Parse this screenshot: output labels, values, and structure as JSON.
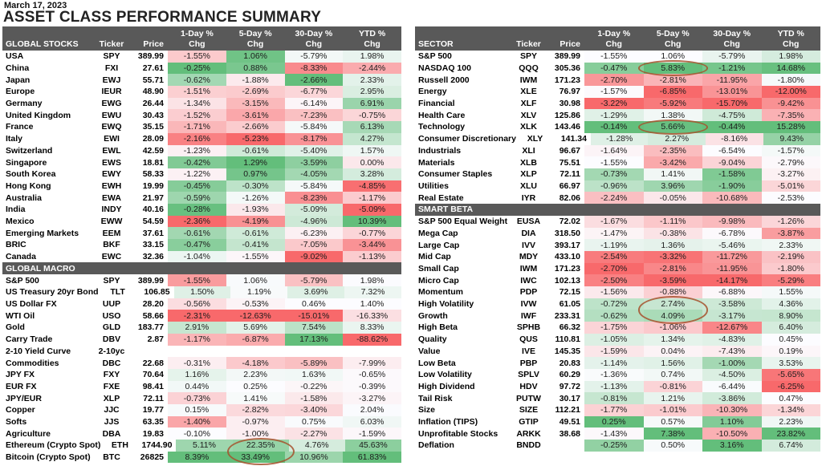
{
  "colors": {
    "header_bg": "#595959",
    "header_text": "#FFFFFF",
    "scale_min": "#F8696B",
    "scale_mid": "#FCFCFF",
    "scale_max": "#63BE7B",
    "annotation": "#A6512D",
    "title_text": "#222222"
  },
  "chart_data": {
    "type": "table",
    "date": "March 17, 2023",
    "title": "ASSET CLASS PERFORMANCE SUMMARY",
    "column_headers": {
      "ticker": "Ticker",
      "price": "Price",
      "chg": "Chg",
      "periods": [
        "1-Day %",
        "5-Day %",
        "30-Day %",
        "YTD %"
      ]
    },
    "heatmap": {
      "style": "3-color scale per section per column, midpoint = column median",
      "min_color": "#F8696B",
      "mid_color": "#FCFCFF",
      "max_color": "#63BE7B"
    },
    "row_fields": [
      "label",
      "ticker",
      "price",
      "chg_1d",
      "chg_5d",
      "chg_30d",
      "chg_ytd"
    ],
    "tables": [
      {
        "id": "left",
        "sections": [
          {
            "name": "GLOBAL STOCKS",
            "rows": [
              [
                "USA",
                "SPY",
                "389.99",
                -1.55,
                1.06,
                -5.79,
                1.98
              ],
              [
                "China",
                "FXI",
                "27.61",
                -0.25,
                0.88,
                -8.33,
                -2.44
              ],
              [
                "Japan",
                "EWJ",
                "55.71",
                -0.62,
                -1.88,
                -2.66,
                2.33
              ],
              [
                "Europe",
                "IEUR",
                "48.90",
                -1.51,
                -2.69,
                -6.77,
                2.95
              ],
              [
                "Germany",
                "EWG",
                "26.44",
                -1.34,
                -3.15,
                -6.14,
                6.91
              ],
              [
                "United Kingdom",
                "EWU",
                "30.43",
                -1.52,
                -3.61,
                -7.23,
                -0.75
              ],
              [
                "France",
                "EWQ",
                "35.15",
                -1.71,
                -2.66,
                -5.84,
                6.13
              ],
              [
                "Italy",
                "EWI",
                "28.09",
                -2.16,
                -5.23,
                -8.17,
                4.27
              ],
              [
                "Switzerland",
                "EWL",
                "42.59",
                -1.23,
                -0.61,
                -5.4,
                1.57
              ],
              [
                "Singapore",
                "EWS",
                "18.81",
                -0.42,
                1.29,
                -3.59,
                0.0
              ],
              [
                "South Korea",
                "EWY",
                "58.33",
                -1.22,
                0.97,
                -4.05,
                3.28
              ],
              [
                "Hong Kong",
                "EWH",
                "19.99",
                -0.45,
                -0.3,
                -5.84,
                -4.85
              ],
              [
                "Australia",
                "EWA",
                "21.97",
                -0.59,
                -1.26,
                -8.23,
                -1.17
              ],
              [
                "India",
                "INDY",
                "40.16",
                -0.28,
                -1.93,
                -5.09,
                -5.09
              ],
              [
                "Mexico",
                "EWW",
                "54.59",
                -2.36,
                -4.19,
                -4.96,
                10.39
              ],
              [
                "Emerging Markets",
                "EEM",
                "37.61",
                -0.61,
                -0.61,
                -6.23,
                -0.77
              ],
              [
                "BRIC",
                "BKF",
                "33.15",
                -0.47,
                -0.41,
                -7.05,
                -3.44
              ],
              [
                "Canada",
                "EWC",
                "32.36",
                -1.04,
                -1.55,
                -9.02,
                -1.13
              ]
            ]
          },
          {
            "name": "GLOBAL MACRO",
            "rows": [
              [
                "S&P 500",
                "SPY",
                "389.99",
                -1.55,
                1.06,
                -5.79,
                1.98
              ],
              [
                "US Treasury 20yr Bond",
                "TLT",
                "106.85",
                1.5,
                1.19,
                3.69,
                7.32
              ],
              [
                "US Dollar FX",
                "UUP",
                "28.20",
                -0.56,
                -0.53,
                0.46,
                1.4
              ],
              [
                "WTI Oil",
                "USO",
                "58.66",
                -2.31,
                -12.63,
                -15.01,
                -16.33
              ],
              [
                "Gold",
                "GLD",
                "183.77",
                2.91,
                5.69,
                7.54,
                8.33
              ],
              [
                "Carry Trade",
                "DBV",
                "2.87",
                -1.17,
                -6.87,
                17.13,
                -88.62
              ],
              [
                "2-10 Yield Curve",
                "2-10yc",
                "",
                null,
                null,
                null,
                null
              ],
              [
                "Commodities",
                "DBC",
                "22.68",
                -0.31,
                -4.18,
                -5.89,
                -7.99
              ],
              [
                "JPY FX",
                "FXY",
                "70.64",
                1.16,
                2.23,
                1.63,
                -0.65
              ],
              [
                "EUR FX",
                "FXE",
                "98.41",
                0.44,
                0.25,
                -0.22,
                -0.39
              ],
              [
                "JPY/EUR",
                "XLP",
                "72.11",
                -0.73,
                1.41,
                -1.58,
                -3.27
              ],
              [
                "Copper",
                "JJC",
                "19.77",
                0.15,
                -2.82,
                -3.4,
                2.04
              ],
              [
                "Softs",
                "JJS",
                "63.35",
                -1.4,
                -0.97,
                0.75,
                6.03
              ],
              [
                "Agriculture",
                "DBA",
                "19.83",
                -0.1,
                -1.0,
                -2.27,
                -1.59
              ],
              [
                "Ethereum (Crypto Spot)",
                "ETH",
                "1744.90",
                5.11,
                22.35,
                4.76,
                45.63
              ],
              [
                "Bitcoin (Crypto Spot)",
                "BTC",
                "26825",
                8.39,
                33.49,
                10.96,
                61.83
              ]
            ]
          }
        ]
      },
      {
        "id": "right",
        "sections": [
          {
            "name": "SECTOR",
            "rows": [
              [
                "S&P 500",
                "SPY",
                "389.99",
                -1.55,
                1.06,
                -5.79,
                1.98
              ],
              [
                "NASDAQ 100",
                "QQQ",
                "305.36",
                -0.47,
                5.83,
                -1.21,
                14.68
              ],
              [
                "Russell 2000",
                "IWM",
                "171.23",
                -2.7,
                -2.81,
                -11.95,
                -1.8
              ],
              [
                "Energy",
                "XLE",
                "76.97",
                -1.57,
                -6.85,
                -13.01,
                -12.0
              ],
              [
                "Financial",
                "XLF",
                "30.98",
                -3.22,
                -5.92,
                -15.7,
                -9.42
              ],
              [
                "Health Care",
                "XLV",
                "125.86",
                -1.29,
                1.38,
                -4.75,
                -7.35
              ],
              [
                "Technology",
                "XLK",
                "143.46",
                -0.14,
                5.66,
                -0.44,
                15.28
              ],
              [
                "Consumer Discretionary",
                "XLY",
                "141.34",
                -1.28,
                2.27,
                -8.16,
                9.43
              ],
              [
                "Industrials",
                "XLI",
                "96.67",
                -1.64,
                -2.35,
                -6.54,
                -1.57
              ],
              [
                "Materials",
                "XLB",
                "75.51",
                -1.55,
                -3.42,
                -9.04,
                -2.79
              ],
              [
                "Consumer Staples",
                "XLP",
                "72.11",
                -0.73,
                1.41,
                -1.58,
                -3.27
              ],
              [
                "Utilities",
                "XLU",
                "66.97",
                -0.96,
                3.96,
                -1.9,
                -5.01
              ],
              [
                "Real Estate",
                "IYR",
                "82.06",
                -2.24,
                -0.05,
                -10.68,
                -2.53
              ]
            ]
          },
          {
            "name": "SMART BETA",
            "rows": [
              [
                "S&P 500 Equal Weight",
                "EUSA",
                "72.02",
                -1.67,
                -1.11,
                -9.98,
                -1.26
              ],
              [
                "Mega Cap",
                "DIA",
                "318.50",
                -1.47,
                -0.38,
                -6.78,
                -3.87
              ],
              [
                "Large Cap",
                "IVV",
                "393.17",
                -1.19,
                1.36,
                -5.46,
                2.33
              ],
              [
                "Mid Cap",
                "MDY",
                "433.10",
                -2.54,
                -3.32,
                -11.72,
                -2.19
              ],
              [
                "Small Cap",
                "IWM",
                "171.23",
                -2.7,
                -2.81,
                -11.95,
                -1.8
              ],
              [
                "Micro Cap",
                "IWC",
                "102.13",
                -2.5,
                -3.59,
                -14.17,
                -5.29
              ],
              [
                "Momentum",
                "PDP",
                "72.15",
                -1.56,
                -0.88,
                -6.88,
                1.55
              ],
              [
                "High Volatility",
                "IVW",
                "61.05",
                -0.72,
                2.74,
                -3.58,
                4.36
              ],
              [
                "Growth",
                "IWF",
                "233.31",
                -0.62,
                4.09,
                -3.17,
                8.9
              ],
              [
                "High Beta",
                "SPHB",
                "66.32",
                -1.75,
                -1.06,
                -12.67,
                6.4
              ],
              [
                "Quality",
                "QUS",
                "110.81",
                -1.05,
                1.34,
                -4.83,
                0.45
              ],
              [
                "Value",
                "IVE",
                "145.35",
                -1.59,
                0.04,
                -7.43,
                0.19
              ],
              [
                "Low Beta",
                "PBP",
                "20.83",
                -1.14,
                1.56,
                -1.0,
                3.53
              ],
              [
                "Low Volatility",
                "SPLV",
                "60.29",
                -1.36,
                0.74,
                -4.5,
                -5.65
              ],
              [
                "High Dividend",
                "HDV",
                "97.72",
                -1.13,
                -0.81,
                -6.44,
                -6.25
              ],
              [
                "Tail Risk",
                "PUTW",
                "30.17",
                -0.81,
                1.21,
                -3.86,
                0.47
              ],
              [
                "Size",
                "SIZE",
                "112.21",
                -1.77,
                -1.01,
                -10.3,
                -1.34
              ],
              [
                "Inflation (TIPS)",
                "GTIP",
                "49.51",
                0.25,
                0.57,
                1.1,
                2.23
              ],
              [
                "Unprofitable Stocks",
                "ARKK",
                "38.68",
                -1.43,
                7.38,
                -10.5,
                23.82
              ],
              [
                "Deflation",
                "BNDD",
                "",
                -0.25,
                0.5,
                3.16,
                6.74
              ]
            ]
          }
        ]
      }
    ]
  },
  "annotations": [
    {
      "label": "circle-eth-btc-5day",
      "table": 0,
      "section": 1,
      "row_start": 14,
      "row_end": 15,
      "col": 1
    },
    {
      "label": "circle-nasdaq100-5day",
      "table": 1,
      "section": 0,
      "row_start": 1,
      "row_end": 1,
      "col": 1
    },
    {
      "label": "circle-technology-5day",
      "table": 1,
      "section": 0,
      "row_start": 6,
      "row_end": 6,
      "col": 1
    },
    {
      "label": "circle-highvol-growth-5day",
      "table": 1,
      "section": 1,
      "row_start": 7,
      "row_end": 8,
      "col": 1
    }
  ]
}
